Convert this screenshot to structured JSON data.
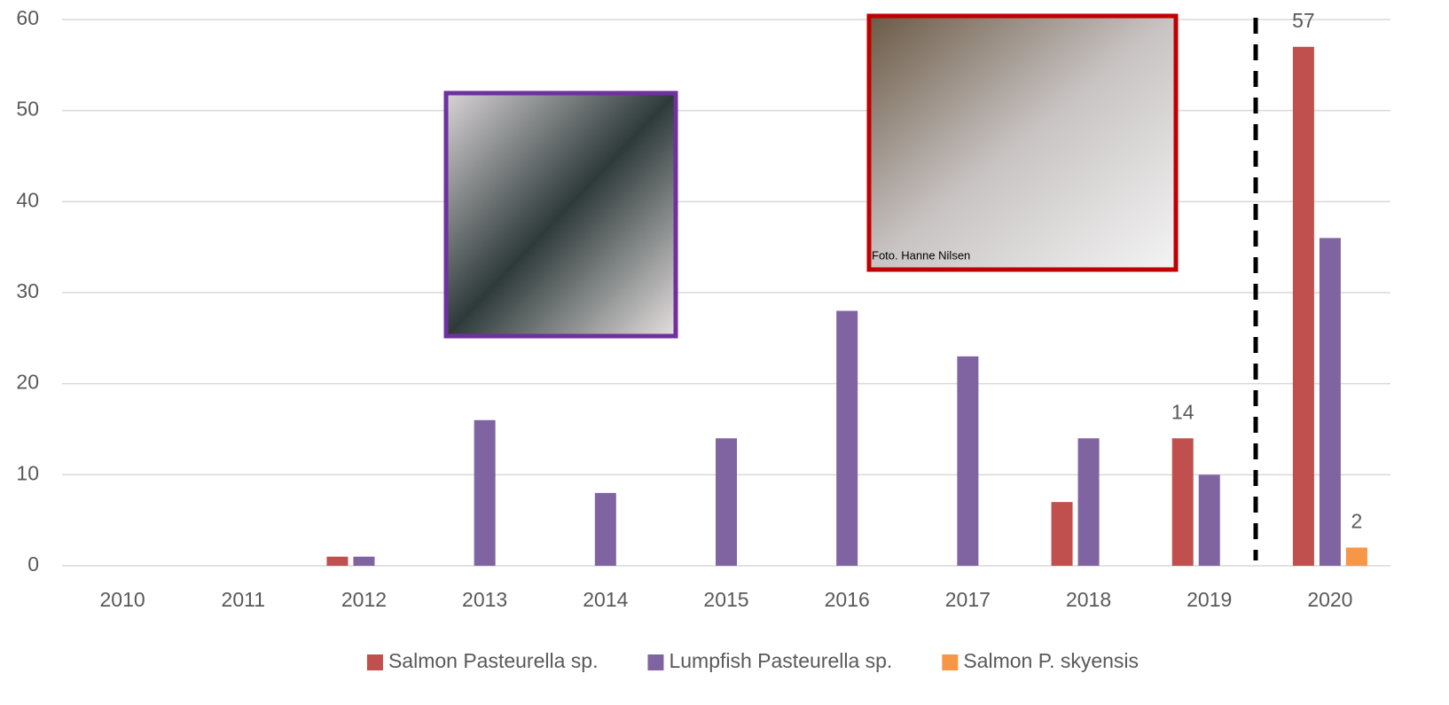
{
  "chart_data": {
    "type": "bar",
    "categories": [
      "2010",
      "2011",
      "2012",
      "2013",
      "2014",
      "2015",
      "2016",
      "2017",
      "2018",
      "2019",
      "2020"
    ],
    "series": [
      {
        "name": "Salmon Pasteurella sp.",
        "color": "#c0504d",
        "values": [
          0,
          0,
          1,
          0,
          0,
          0,
          0,
          0,
          7,
          14,
          57
        ],
        "value_labels": [
          null,
          null,
          null,
          null,
          null,
          null,
          null,
          null,
          null,
          "14",
          "57"
        ]
      },
      {
        "name": "Lumpfish Pasteurella sp.",
        "color": "#8064a2",
        "values": [
          0,
          0,
          1,
          16,
          8,
          14,
          28,
          23,
          14,
          10,
          36
        ]
      },
      {
        "name": "Salmon P. skyensis",
        "color": "#f79646",
        "values": [
          0,
          0,
          0,
          0,
          0,
          0,
          0,
          0,
          0,
          0,
          2
        ],
        "value_labels": [
          null,
          null,
          null,
          null,
          null,
          null,
          null,
          null,
          null,
          null,
          "2"
        ]
      }
    ],
    "ylim": [
      0,
      60
    ],
    "yticks": [
      0,
      10,
      20,
      30,
      40,
      50,
      60
    ],
    "grid": true,
    "legend": "bottom",
    "annotations": [
      "Foto. Hanne Nilsen"
    ]
  }
}
